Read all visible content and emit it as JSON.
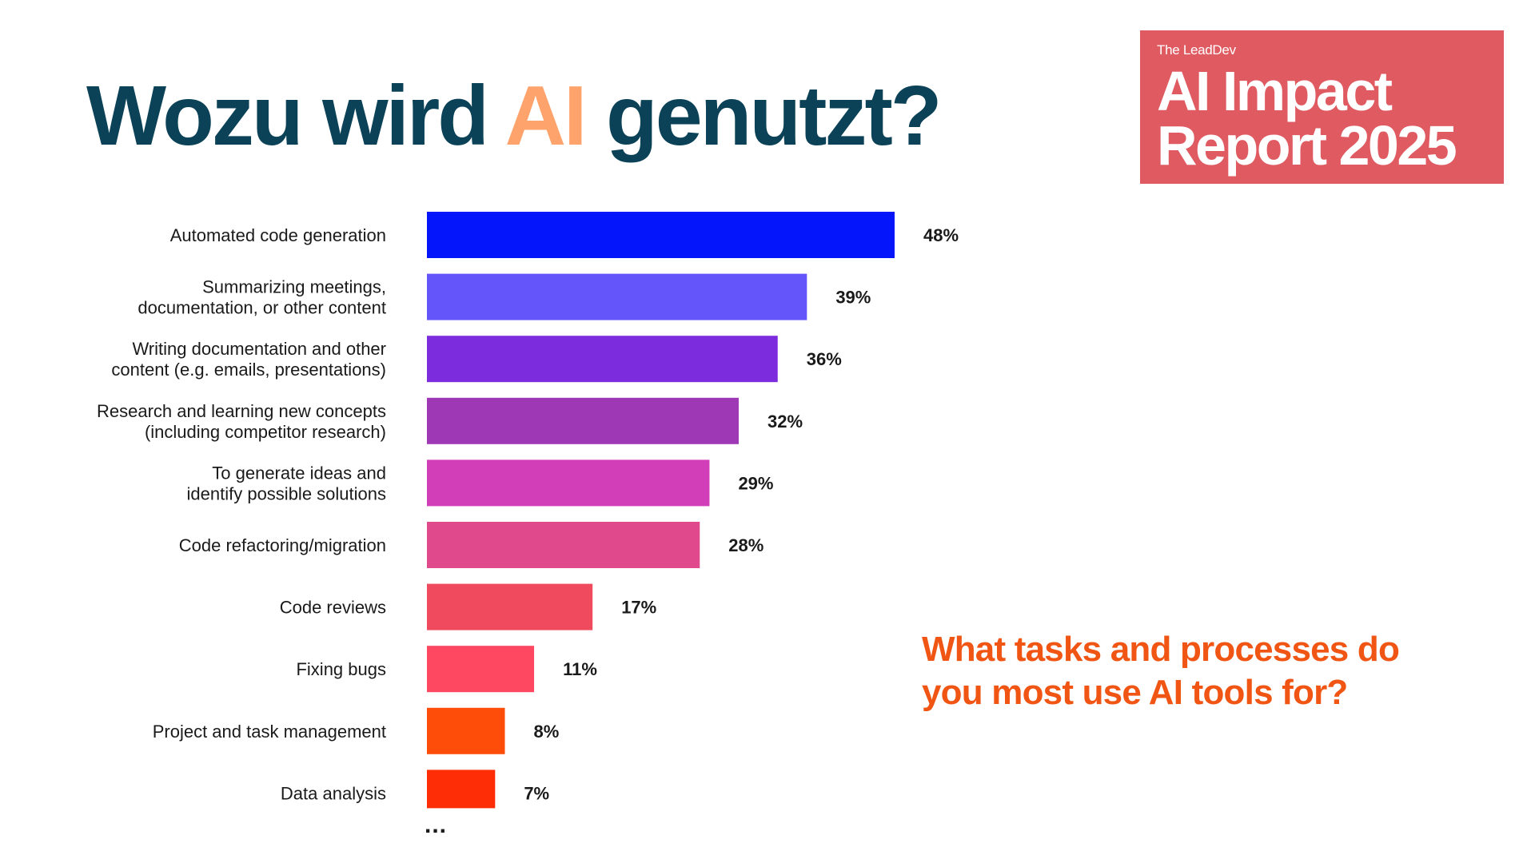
{
  "title": {
    "before": "Wozu wird ",
    "accent": "AI",
    "after": " genutzt?"
  },
  "brand": {
    "small": "The LeadDev",
    "line1": "AI Impact",
    "line2": "Report 2025"
  },
  "question": {
    "line1": "What tasks and processes do",
    "line2": "you most use AI tools for?"
  },
  "more_indicator": "...",
  "colors": {
    "title": "#0b4257",
    "accent": "#ffa36c",
    "brand_bg": "#e05a62",
    "question": "#f05514"
  },
  "chart_data": {
    "type": "bar",
    "orientation": "horizontal",
    "categories": [
      [
        "Automated code generation"
      ],
      [
        "Summarizing meetings,",
        "documentation, or other content"
      ],
      [
        "Writing documentation and other",
        "content (e.g. emails, presentations)"
      ],
      [
        "Research and learning new concepts",
        "(including competitor research)"
      ],
      [
        "To generate ideas and",
        "identify possible solutions"
      ],
      [
        "Code refactoring/migration"
      ],
      [
        "Code reviews"
      ],
      [
        "Fixing bugs"
      ],
      [
        "Project and task management"
      ],
      [
        "Data analysis"
      ]
    ],
    "values": [
      48,
      39,
      36,
      32,
      29,
      28,
      17,
      11,
      8,
      7
    ],
    "value_labels": [
      "48%",
      "39%",
      "36%",
      "32%",
      "29%",
      "28%",
      "17%",
      "11%",
      "8%",
      "7%"
    ],
    "bar_colors": [
      "#0414fb",
      "#6355fa",
      "#7c2bdd",
      "#9e38b4",
      "#d23db8",
      "#e0498c",
      "#ef4a5d",
      "#fe4760",
      "#fe4d09",
      "#fe2d05"
    ],
    "xlim": [
      0,
      48
    ],
    "grid": false
  }
}
